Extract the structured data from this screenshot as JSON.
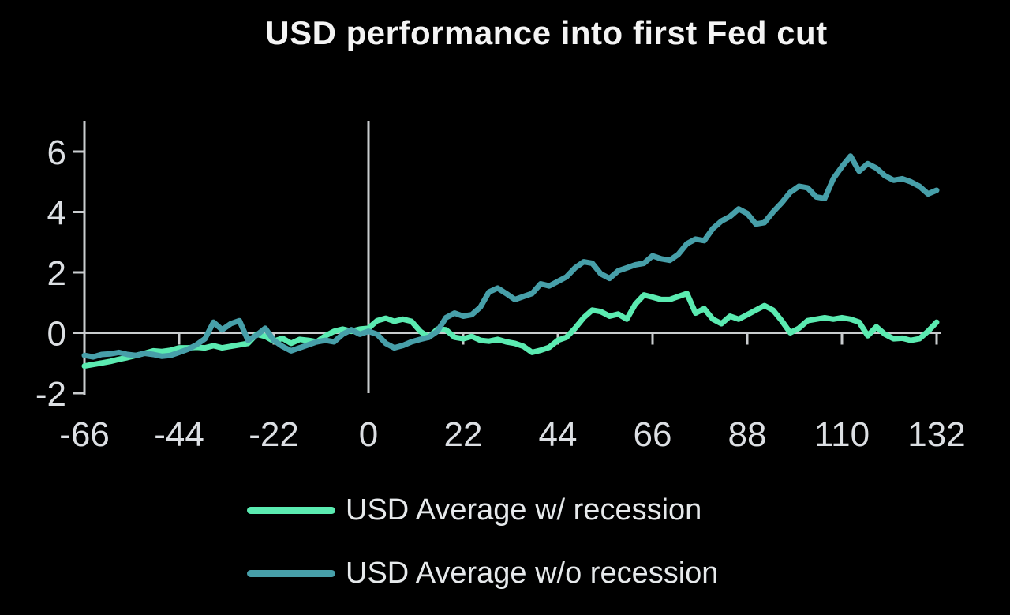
{
  "chart_data": {
    "type": "line",
    "title": "USD performance into first Fed cut",
    "xlabel": "",
    "ylabel": "",
    "xlim": [
      -66,
      132
    ],
    "ylim": [
      -2,
      6
    ],
    "x_ticks": [
      -66,
      -44,
      -22,
      0,
      22,
      44,
      66,
      88,
      110,
      132
    ],
    "y_ticks": [
      6,
      4,
      2,
      0,
      -2
    ],
    "grid": "off",
    "legend_position": "bottom",
    "background_color": "#000000",
    "axis_color": "#C9CCCE",
    "label_color": "#DCDFE3",
    "title_color": "#F4F4F4",
    "reference_lines": {
      "horizontal_at_y": 0,
      "vertical_at_x": 0
    },
    "x": [
      -66,
      -64,
      -62,
      -60,
      -58,
      -56,
      -54,
      -52,
      -50,
      -48,
      -46,
      -44,
      -42,
      -40,
      -38,
      -36,
      -34,
      -32,
      -30,
      -28,
      -26,
      -24,
      -22,
      -20,
      -18,
      -16,
      -14,
      -12,
      -10,
      -8,
      -6,
      -4,
      -2,
      0,
      2,
      4,
      6,
      8,
      10,
      12,
      14,
      16,
      18,
      20,
      22,
      24,
      26,
      28,
      30,
      32,
      34,
      36,
      38,
      40,
      42,
      44,
      46,
      48,
      50,
      52,
      54,
      56,
      58,
      60,
      62,
      64,
      66,
      68,
      70,
      72,
      74,
      76,
      78,
      80,
      82,
      84,
      86,
      88,
      90,
      92,
      94,
      96,
      98,
      100,
      102,
      104,
      106,
      108,
      110,
      112,
      114,
      116,
      118,
      120,
      122,
      124,
      126,
      128,
      130,
      132
    ],
    "series": [
      {
        "name": "USD Average w/ recession",
        "color": "#5BEBB1",
        "values": [
          -1.1,
          -1.05,
          -1.0,
          -0.95,
          -0.88,
          -0.82,
          -0.75,
          -0.68,
          -0.6,
          -0.62,
          -0.58,
          -0.5,
          -0.5,
          -0.48,
          -0.5,
          -0.43,
          -0.5,
          -0.45,
          -0.4,
          -0.35,
          -0.05,
          -0.12,
          -0.28,
          -0.18,
          -0.35,
          -0.22,
          -0.25,
          -0.3,
          -0.1,
          0.05,
          0.12,
          0.05,
          0.12,
          0.15,
          0.4,
          0.48,
          0.38,
          0.45,
          0.38,
          0.05,
          -0.15,
          0.12,
          0.1,
          -0.15,
          -0.2,
          -0.12,
          -0.25,
          -0.28,
          -0.22,
          -0.3,
          -0.35,
          -0.45,
          -0.65,
          -0.58,
          -0.48,
          -0.25,
          -0.15,
          0.15,
          0.5,
          0.75,
          0.7,
          0.55,
          0.62,
          0.45,
          0.95,
          1.25,
          1.18,
          1.1,
          1.1,
          1.2,
          1.3,
          0.65,
          0.8,
          0.45,
          0.3,
          0.55,
          0.45,
          0.6,
          0.75,
          0.9,
          0.75,
          0.4,
          0.0,
          0.15,
          0.4,
          0.45,
          0.5,
          0.45,
          0.5,
          0.45,
          0.35,
          -0.1,
          0.2,
          -0.05,
          -0.2,
          -0.18,
          -0.25,
          -0.2,
          0.05,
          0.35
        ]
      },
      {
        "name": "USD Average w/o recession",
        "color": "#479FA9",
        "values": [
          -0.75,
          -0.8,
          -0.72,
          -0.7,
          -0.65,
          -0.72,
          -0.75,
          -0.68,
          -0.72,
          -0.78,
          -0.75,
          -0.65,
          -0.55,
          -0.4,
          -0.2,
          0.35,
          0.1,
          0.3,
          0.4,
          -0.25,
          -0.08,
          0.15,
          -0.25,
          -0.45,
          -0.6,
          -0.5,
          -0.4,
          -0.3,
          -0.25,
          -0.3,
          -0.05,
          0.1,
          -0.05,
          0.05,
          -0.05,
          -0.35,
          -0.5,
          -0.42,
          -0.3,
          -0.22,
          -0.15,
          0.05,
          0.5,
          0.65,
          0.55,
          0.6,
          0.85,
          1.35,
          1.48,
          1.3,
          1.1,
          1.2,
          1.3,
          1.62,
          1.55,
          1.7,
          1.85,
          2.15,
          2.35,
          2.3,
          1.95,
          1.8,
          2.05,
          2.15,
          2.25,
          2.3,
          2.55,
          2.45,
          2.4,
          2.6,
          2.95,
          3.1,
          3.05,
          3.45,
          3.7,
          3.85,
          4.1,
          3.95,
          3.6,
          3.65,
          4.0,
          4.3,
          4.65,
          4.85,
          4.8,
          4.5,
          4.45,
          5.1,
          5.5,
          5.85,
          5.35,
          5.6,
          5.45,
          5.2,
          5.05,
          5.1,
          5.0,
          4.85,
          4.6,
          4.72
        ]
      }
    ]
  }
}
